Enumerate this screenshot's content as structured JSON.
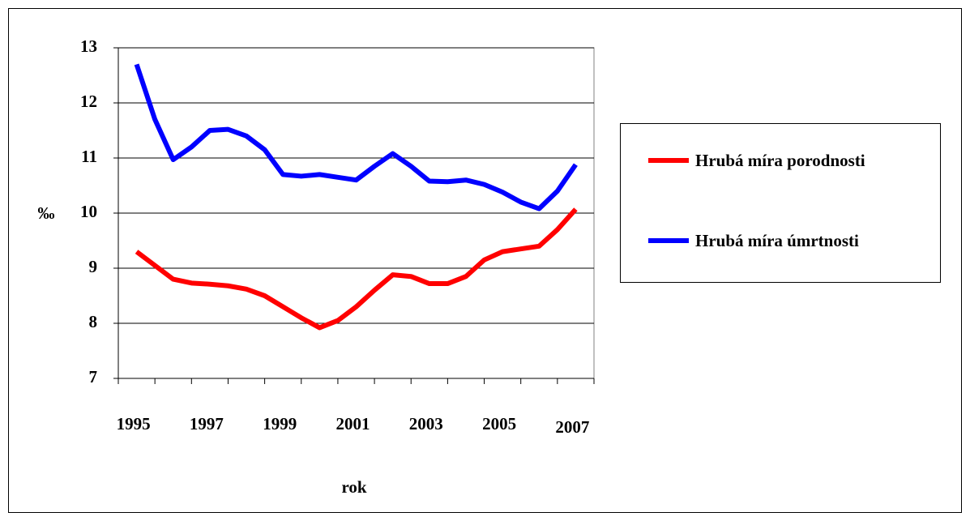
{
  "chart_data": {
    "type": "line",
    "x_label": "rok",
    "y_label": "‰",
    "categories": [
      "1995",
      null,
      null,
      null,
      "1997",
      null,
      null,
      null,
      "1999",
      null,
      null,
      null,
      "2001",
      null,
      null,
      null,
      "2003",
      null,
      null,
      null,
      "2005",
      null,
      null,
      null,
      "2007"
    ],
    "series": [
      {
        "name": "Hrubá míra porodnosti",
        "color": "#ff0000",
        "values": [
          9.3,
          9.05,
          8.8,
          8.73,
          8.71,
          8.68,
          8.62,
          8.5,
          8.3,
          8.1,
          7.92,
          8.05,
          8.3,
          8.6,
          8.88,
          8.85,
          8.72,
          8.72,
          8.85,
          9.15,
          9.3,
          9.35,
          9.4,
          9.7,
          10.07
        ]
      },
      {
        "name": "Hrubá míra úmrtnosti",
        "color": "#0000ff",
        "values": [
          12.7,
          11.7,
          10.97,
          11.2,
          11.5,
          11.52,
          11.4,
          11.15,
          10.7,
          10.67,
          10.7,
          10.65,
          10.6,
          10.85,
          11.08,
          10.85,
          10.58,
          10.57,
          10.6,
          10.52,
          10.38,
          10.2,
          10.08,
          10.4,
          10.88
        ]
      }
    ],
    "ylim": [
      7,
      13
    ],
    "yticks": [
      7,
      8,
      9,
      10,
      11,
      12,
      13
    ],
    "grid": true,
    "legend": "right"
  }
}
